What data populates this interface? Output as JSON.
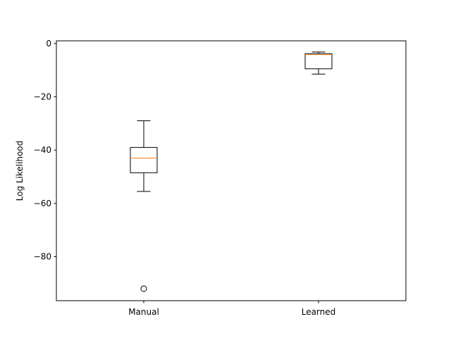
{
  "chart_data": {
    "type": "box",
    "title": "",
    "xlabel": "",
    "ylabel": "Log Likelihood",
    "categories": [
      "Manual",
      "Learned"
    ],
    "ylim": [
      -96.5,
      1.0
    ],
    "yticks": [
      0,
      -20,
      -40,
      -60,
      -80
    ],
    "ytick_labels": [
      "0",
      "−20",
      "−40",
      "−60",
      "−80"
    ],
    "grid": false,
    "boxes": [
      {
        "category": "Manual",
        "whisker_low": -55.5,
        "q1": -48.5,
        "median": -43.0,
        "q3": -39.0,
        "whisker_high": -29.0,
        "outliers": [
          -92.0
        ]
      },
      {
        "category": "Learned",
        "whisker_low": -11.5,
        "q1": -9.5,
        "median": -4.2,
        "q3": -3.8,
        "whisker_high": -3.2,
        "outliers": []
      }
    ],
    "colors": {
      "box": "#000000",
      "median": "#ff7f0e",
      "axes": "#000000"
    }
  }
}
